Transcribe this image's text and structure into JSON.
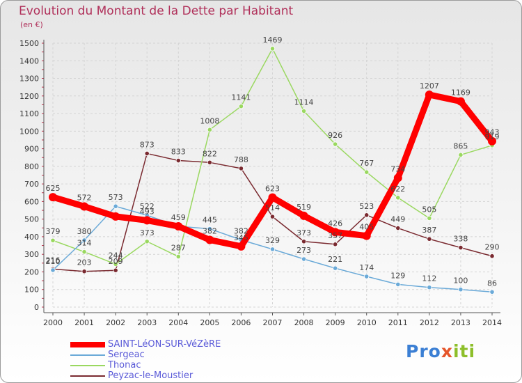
{
  "title": "Evolution du Montant de la Dette par Habitant",
  "unit": "(en €)",
  "logo": {
    "parts": [
      "Pro",
      "x",
      "iti"
    ],
    "colors": [
      "#3b7fd4",
      "#e5552a",
      "#8dbf2a"
    ]
  },
  "chart_data": {
    "type": "line",
    "x": [
      "2000",
      "2001",
      "2002",
      "2003",
      "2004",
      "2005",
      "2006",
      "2007",
      "2008",
      "2009",
      "2010",
      "2011",
      "2012",
      "2013",
      "2014"
    ],
    "ylim": [
      0,
      1500
    ],
    "yticks": [
      0,
      100,
      200,
      300,
      400,
      500,
      600,
      700,
      800,
      900,
      1000,
      1100,
      1200,
      1300,
      1400,
      1500
    ],
    "grid": true,
    "legend_position": "bottom-left",
    "series": [
      {
        "name": "SAINT-LéON-SUR-VéZèRE",
        "color": "#ff0000",
        "values": [
          625,
          572,
          515,
          493,
          459,
          382,
          345,
          623,
          519,
          426,
          405,
          734,
          1207,
          1169,
          943
        ],
        "labels": [
          "625",
          "572",
          "",
          "493",
          "459",
          "382",
          "345",
          "623",
          "519",
          "426",
          "405",
          "734",
          "1207",
          "1169",
          "943"
        ]
      },
      {
        "name": "Sergeac",
        "color": "#6baad8",
        "values": [
          210,
          380,
          573,
          522,
          459,
          445,
          382,
          329,
          273,
          221,
          174,
          129,
          112,
          100,
          86
        ],
        "labels": [
          "210",
          "380",
          "573",
          "522",
          "",
          "445",
          "382",
          "329",
          "273",
          "221",
          "174",
          "129",
          "112",
          "100",
          "86"
        ]
      },
      {
        "name": "Thonac",
        "color": "#9ad860",
        "values": [
          379,
          314,
          244,
          373,
          287,
          1008,
          1141,
          1469,
          1114,
          926,
          767,
          622,
          505,
          865,
          919
        ],
        "labels": [
          "379",
          "314",
          "244",
          "373",
          "287",
          "1008",
          "1141",
          "1469",
          "1114",
          "926",
          "767",
          "622",
          "505",
          "865",
          "919"
        ]
      },
      {
        "name": "Peyzac-le-Moustier",
        "color": "#7a2a30",
        "values": [
          216,
          203,
          209,
          873,
          833,
          822,
          788,
          514,
          373,
          357,
          523,
          449,
          387,
          338,
          290
        ],
        "labels": [
          "216",
          "203",
          "209",
          "873",
          "833",
          "822",
          "788",
          "514",
          "373",
          "357",
          "523",
          "449",
          "387",
          "338",
          "290"
        ]
      }
    ]
  }
}
